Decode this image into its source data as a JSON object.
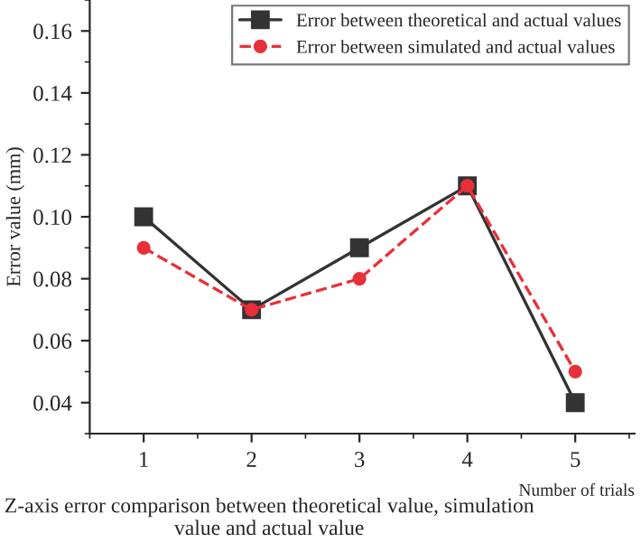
{
  "chart_data": {
    "type": "line",
    "xlabel": "Number of trials",
    "ylabel": "Error value (mm)",
    "annotations": [
      "Z-axis error comparison between theoretical value, simulation value and actual value"
    ],
    "x": [
      1,
      2,
      3,
      4,
      5
    ],
    "series": [
      {
        "name": "Error between theoretical and actual values",
        "color": "#333333",
        "values": [
          0.1,
          0.07,
          0.09,
          0.11,
          0.04
        ],
        "marker": "square",
        "line_style": "solid"
      },
      {
        "name": "Error between simulated and actual values",
        "color": "#e8303a",
        "values": [
          0.09,
          0.07,
          0.08,
          0.11,
          0.05
        ],
        "marker": "circle",
        "line_style": "dashed"
      }
    ],
    "xlim": [
      0.5,
      5.55
    ],
    "xticks": [
      1,
      2,
      3,
      4,
      5
    ],
    "ylim": [
      0.03,
      0.17
    ],
    "yticks": [
      {
        "value": 0.04,
        "label": "0.04"
      },
      {
        "value": 0.06,
        "label": "0.06"
      },
      {
        "value": 0.08,
        "label": "0.08"
      },
      {
        "value": 0.1,
        "label": "0.10"
      },
      {
        "value": 0.12,
        "label": "0.12"
      },
      {
        "value": 0.14,
        "label": "0.14"
      },
      {
        "value": 0.16,
        "label": "0.16"
      }
    ],
    "grid": false,
    "legend": "top right"
  }
}
